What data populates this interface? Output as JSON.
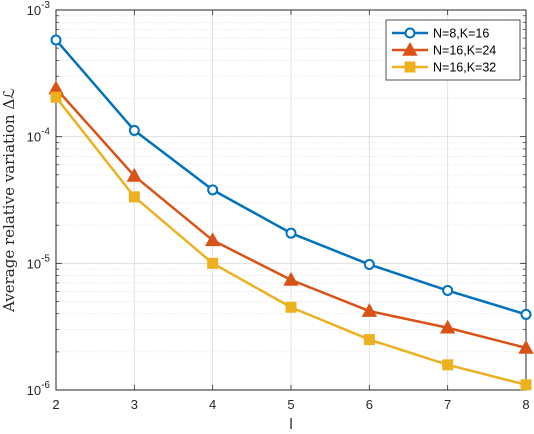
{
  "chart_data": {
    "type": "line",
    "x": [
      2,
      3,
      4,
      5,
      6,
      7,
      8
    ],
    "xlabel": "l",
    "ylabel": "Average relative variation Δℒ",
    "yscale": "log",
    "xlim": [
      2,
      8
    ],
    "ylim": [
      1e-06,
      0.001
    ],
    "grid": true,
    "legend_position": "top-right",
    "x_tick_labels": [
      "2",
      "3",
      "4",
      "5",
      "6",
      "7",
      "8"
    ],
    "y_ticks": [
      {
        "value": 1e-06,
        "base": "10",
        "exp": "-6"
      },
      {
        "value": 1e-05,
        "base": "10",
        "exp": "-5"
      },
      {
        "value": 0.0001,
        "base": "10",
        "exp": "-4"
      },
      {
        "value": 0.001,
        "base": "10",
        "exp": "-3"
      }
    ],
    "series": [
      {
        "name": "N=8,K=16",
        "color": "#0072BD",
        "marker": "circle",
        "values": [
          0.00058,
          0.000112,
          3.8e-05,
          1.73e-05,
          9.8e-06,
          6.1e-06,
          3.95e-06
        ]
      },
      {
        "name": "N=16,K=24",
        "color": "#D95319",
        "marker": "triangle",
        "values": [
          0.00024,
          4.9e-05,
          1.52e-05,
          7.4e-06,
          4.2e-06,
          3.1e-06,
          2.15e-06
        ]
      },
      {
        "name": "N=16,K=32",
        "color": "#EDB120",
        "marker": "square",
        "values": [
          0.000205,
          3.35e-05,
          1e-05,
          4.5e-06,
          2.5e-06,
          1.58e-06,
          1.1e-06
        ]
      }
    ]
  }
}
